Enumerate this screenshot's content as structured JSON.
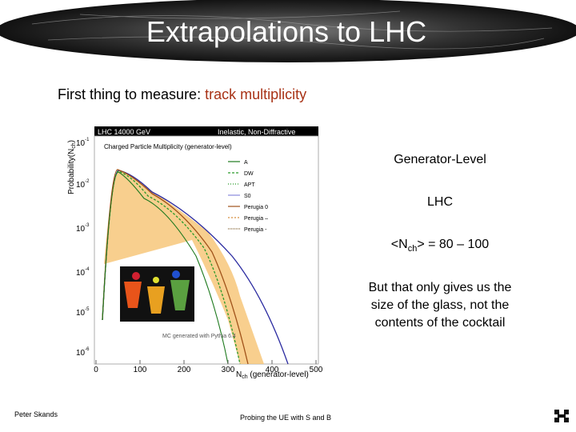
{
  "slide": {
    "title": "Extrapolations to LHC",
    "subtitle": {
      "lead": "First thing to measure: ",
      "highlight": "track multiplicity"
    },
    "plot": {
      "header_left": "LHC 14000 GeV",
      "header_right": "Inelastic, Non-Diffractive",
      "caption": "Charged Particle  Multiplicity (generator-level)",
      "y_label": "Probability(N",
      "y_label_sub": "ch",
      "y_label_end": ")",
      "x_label": "N",
      "x_label_sub": "ch",
      "x_label_end": " (generator-level)",
      "xticks": [
        0,
        100,
        200,
        300,
        400,
        500
      ],
      "yticks": [
        {
          "base": "10",
          "exp": "-1"
        },
        {
          "base": "10",
          "exp": "-2"
        },
        {
          "base": "10",
          "exp": "-3"
        },
        {
          "base": "10",
          "exp": "-4"
        },
        {
          "base": "10",
          "exp": "-5"
        },
        {
          "base": "10",
          "exp": "-6"
        }
      ],
      "legend": [
        "A",
        "DW",
        "APT",
        "S0",
        "Perugia 0",
        "Perugia –",
        "Perugia -"
      ],
      "note": "MC generated with Pythia 6.4"
    },
    "side": {
      "line1": "Generator-Level",
      "line2": "LHC",
      "nch": {
        "lead": "<N",
        "sub": "ch",
        "rest": "> = 80 – 100"
      },
      "remark": [
        "But that only gives us the",
        "size of the glass, not the",
        "contents of the cocktail"
      ]
    },
    "footer": {
      "author": "Peter Skands",
      "talk": "Probing the UE with S and B"
    }
  }
}
